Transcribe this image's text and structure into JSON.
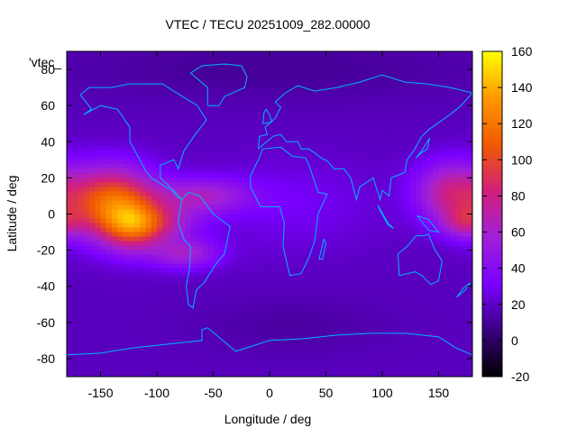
{
  "chart_data": {
    "type": "heatmap",
    "title": "VTEC / TECU 20251009_282.00000",
    "xlabel": "Longitude / deg",
    "ylabel": "Latitude / deg",
    "plot_key": "'vtec_",
    "xlim": [
      -180,
      180
    ],
    "ylim": [
      -90,
      90
    ],
    "xticks": [
      -150,
      -100,
      -50,
      0,
      50,
      100,
      150
    ],
    "yticks": [
      -80,
      -60,
      -40,
      -20,
      0,
      20,
      40,
      60,
      80
    ],
    "colorbar": {
      "range": [
        -20,
        160
      ],
      "ticks": [
        -20,
        0,
        20,
        40,
        60,
        80,
        100,
        120,
        140,
        160
      ],
      "palette": [
        "#000000",
        "#3a0082",
        "#7a00ff",
        "#a020d8",
        "#d2207a",
        "#f05a00",
        "#ff9800",
        "#ffff00"
      ]
    },
    "background_level": 18,
    "features": [
      {
        "lon": -140,
        "lat": 6,
        "slon": 28,
        "slat": 14,
        "peak": 95
      },
      {
        "lon": -122,
        "lat": -8,
        "slon": 18,
        "slat": 10,
        "peak": 45
      },
      {
        "lon": -100,
        "lat": -5,
        "slon": 25,
        "slat": 7,
        "peak": 40
      },
      {
        "lon": -60,
        "lat": 10,
        "slon": 30,
        "slat": 7,
        "peak": 40
      },
      {
        "lon": -75,
        "lat": -22,
        "slon": 22,
        "slat": 6,
        "peak": 40
      },
      {
        "lon": 20,
        "lat": 5,
        "slon": 55,
        "slat": 18,
        "peak": 12
      },
      {
        "lon": 160,
        "lat": 12,
        "slon": 22,
        "slat": 12,
        "peak": 55
      },
      {
        "lon": 172,
        "lat": -5,
        "slon": 14,
        "slat": 6,
        "peak": 35
      },
      {
        "lon": 0,
        "lat": 80,
        "slon": 140,
        "slat": 12,
        "peak": -8
      },
      {
        "lon": 20,
        "lat": -62,
        "slon": 55,
        "slat": 10,
        "peak": -6
      }
    ],
    "grid": false,
    "legend": "none",
    "colors": {
      "coast": "#00b4ff"
    }
  }
}
